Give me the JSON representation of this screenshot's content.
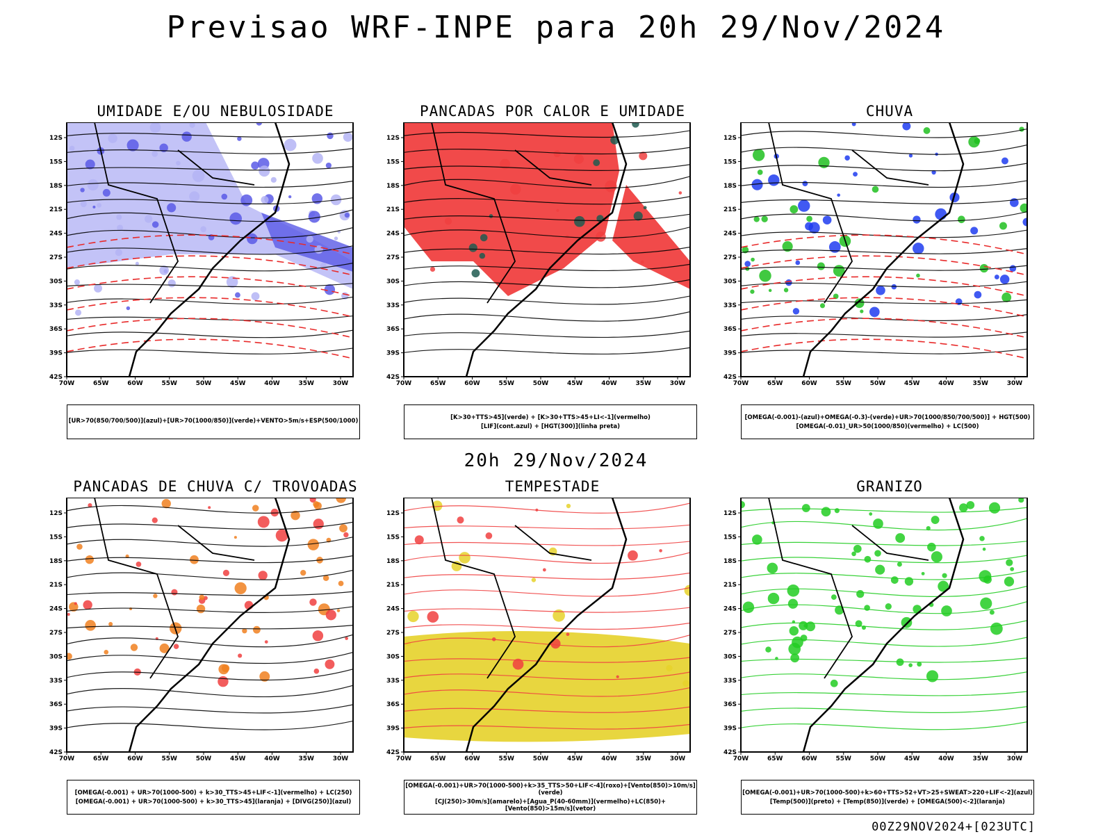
{
  "title": "Previsao WRF-INPE  para 20h 29/Nov/2024",
  "mid_date": "20h 29/Nov/2024",
  "footer": "00Z29NOV2024+[023UTC]",
  "lat_labels": [
    "12S",
    "15S",
    "18S",
    "21S",
    "24S",
    "27S",
    "30S",
    "33S",
    "36S",
    "39S",
    "42S"
  ],
  "lon_labels": [
    "70W",
    "65W",
    "60W",
    "55W",
    "50W",
    "45W",
    "40W",
    "35W",
    "30W"
  ],
  "panels": [
    {
      "title": "UMIDADE E/OU NEBULOSIDADE",
      "legend1": "[UR>70(850/700/500)](azul)+[UR>70(1000/850)](verde)+VENTO>5m/s+ESP(500/1000)",
      "legend2": "",
      "colors": [
        "#b4b4f5",
        "#5a5ae6",
        "#22cc22",
        "#e82a2a"
      ]
    },
    {
      "title": "PANCADAS POR CALOR E UMIDADE",
      "legend1": "[K>30+TTS>45](verde) + [K>30+TTS>45+LI<-1](vermelho)",
      "legend2": "[LIF](cont.azul) + [HGT(300)](linha preta)",
      "colors": [
        "#f04040",
        "#1e5a50",
        "#2a3adc",
        "#000000"
      ]
    },
    {
      "title": "CHUVA",
      "legend1": "[OMEGA(-0.001)-(azul)+OMEGA(-0.3)-(verde)+UR>70(1000/850/700/500)] + HGT(500)",
      "legend2": "[OMEGA(-0.01)_UR>50(1000/850)(vermelho) + LC(500)",
      "colors": [
        "#1e3cf0",
        "#20c020",
        "#f04040",
        "#000000"
      ]
    },
    {
      "title": "PANCADAS DE CHUVA C/ TROVOADAS",
      "legend1": "[OMEGA(-0.001) + UR>70(1000-500) + k>30_TTS>45+LIF<-1](vermelho) + LC(250)",
      "legend2": "[OMEGA(-0.001) + UR>70(1000-500) + k>30_TTS>45](laranja) + [DIVG(250)](azul)",
      "colors": [
        "#f04040",
        "#f08020",
        "#2040f0",
        "#000000"
      ]
    },
    {
      "title": "TEMPESTADE",
      "legend1": "[OMEGA(-0.001)+UR>70(1000-500)+k>35_TTS>50+LIF<-4](roxo)+[Vento(850)>10m/s](verde)",
      "legend2": "[CJ(250)>30m/s](amarelo)+[Agua_P(40-60mm)](vermelho)+LC(850)+[Vento(850)>15m/s](vetor)",
      "colors": [
        "#e6d22a",
        "#f04040",
        "#20b020",
        "#a020c0"
      ]
    },
    {
      "title": "GRANIZO",
      "legend1": "[OMEGA(-0.001)+UR>70(1000-500)+k>60+TTS>52+VT>25+SWEAT>220+LIF<-2](azul)",
      "legend2": "[Temp(500)](preto) + [Temp(850)](verde) + [OMEGA(500)<-2](laranja)",
      "colors": [
        "#22cc22",
        "#000000",
        "#f08020",
        "#2040f0"
      ]
    }
  ]
}
